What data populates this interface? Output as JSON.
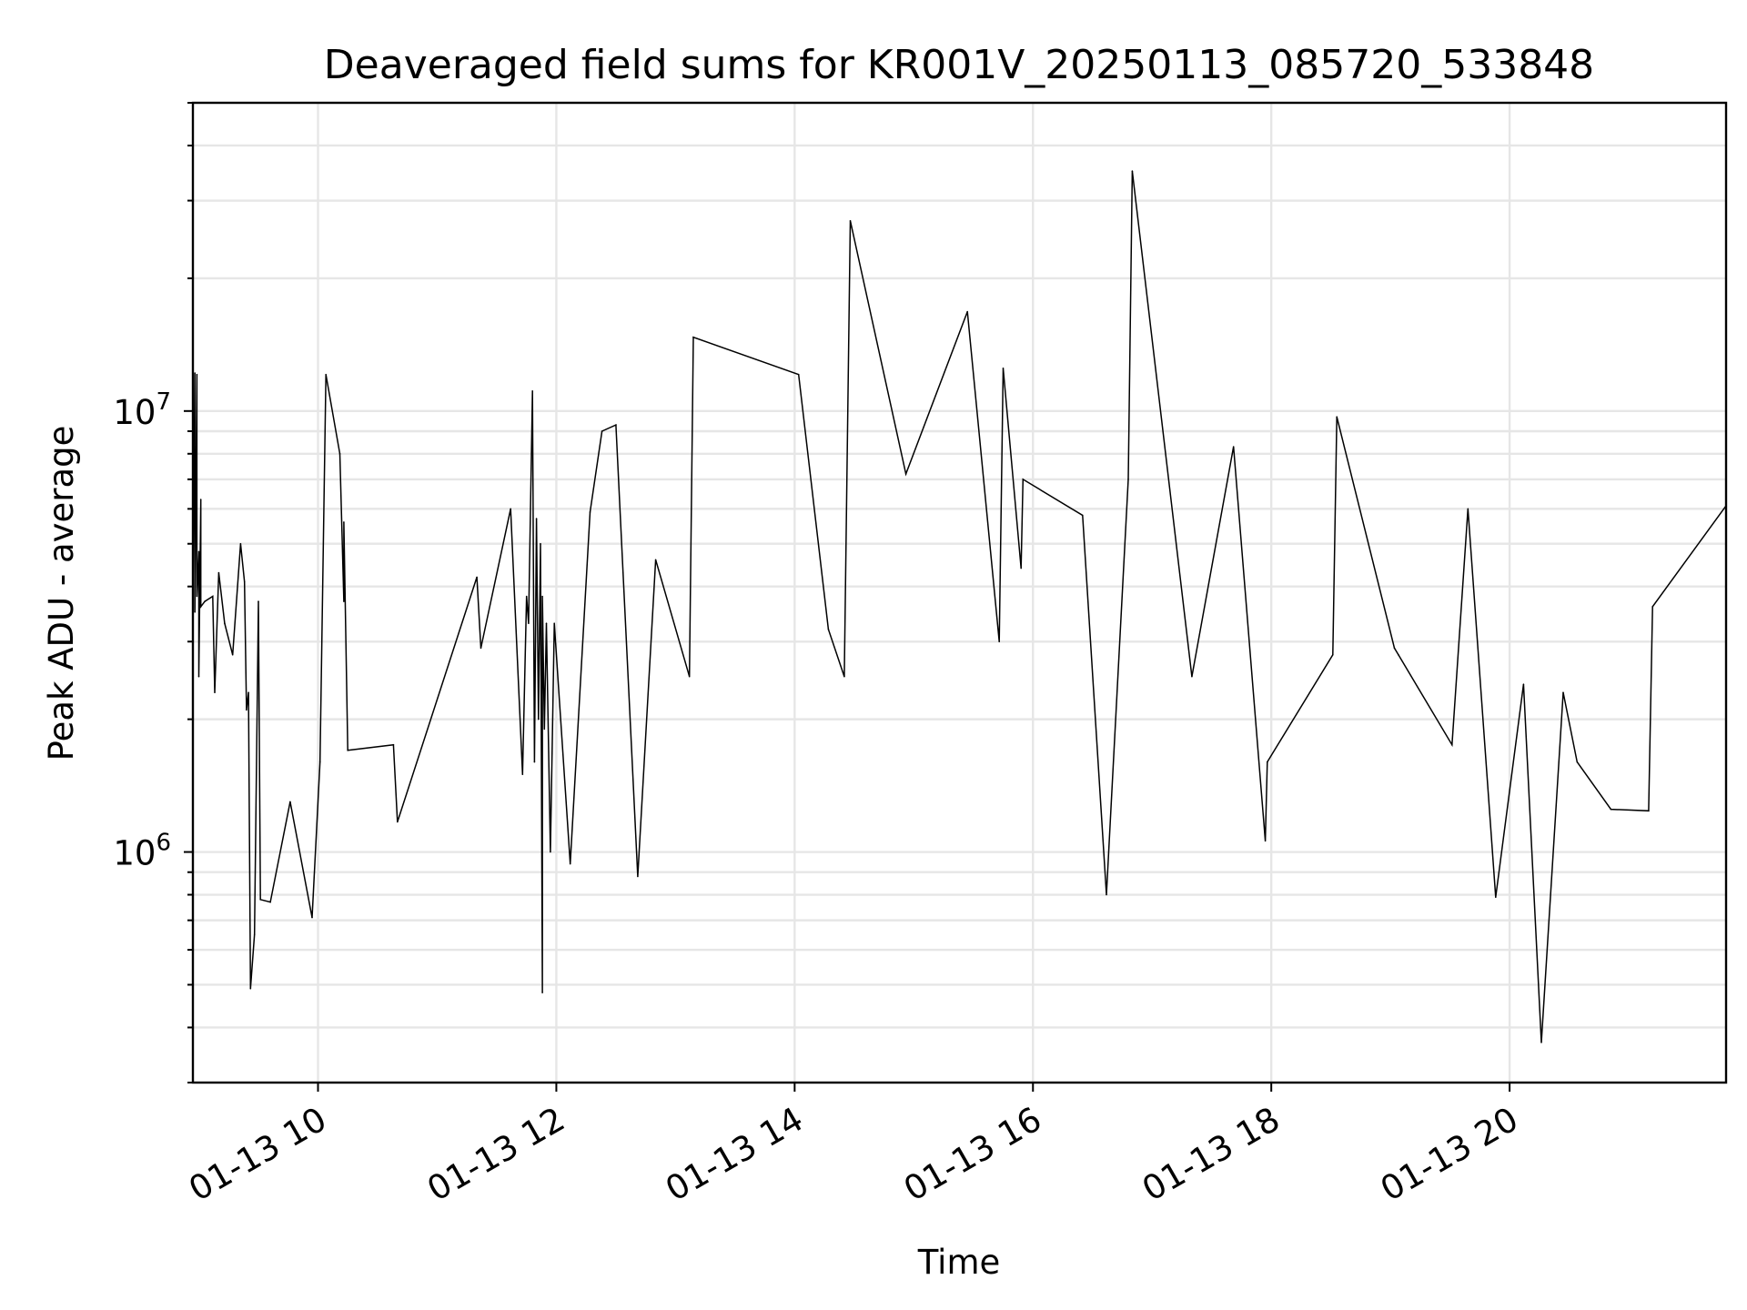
{
  "chart_data": {
    "type": "line",
    "title": "Deaveraged field sums for KR001V_20250113_085720_533848",
    "xlabel": "Time",
    "ylabel": "Peak ADU - average",
    "yscale": "log",
    "grid": true,
    "xlim": [
      "01-13 08:57",
      "01-13 21:49"
    ],
    "ylim": [
      300000,
      50000000
    ],
    "x_ticks": [
      "01-13 10",
      "01-13 12",
      "01-13 14",
      "01-13 16",
      "01-13 18",
      "01-13 20"
    ],
    "y_ticks": [
      {
        "value": 1000000,
        "base": "10",
        "exp": "6"
      },
      {
        "value": 10000000,
        "base": "10",
        "exp": "7"
      }
    ],
    "series": [
      {
        "color": "#000000",
        "points": [
          [
            "01-13 08:57",
            3700000
          ],
          [
            "01-13 08:58",
            12200000
          ],
          [
            "01-13 08:58",
            3500000
          ],
          [
            "01-13 08:59",
            12100000
          ],
          [
            "01-13 08:59",
            3800000
          ],
          [
            "01-13 09:00",
            4800000
          ],
          [
            "01-13 09:00",
            2500000
          ],
          [
            "01-13 09:01",
            6300000
          ],
          [
            "01-13 09:01",
            3600000
          ],
          [
            "01-13 09:03",
            3700000
          ],
          [
            "01-13 09:07",
            3800000
          ],
          [
            "01-13 09:08",
            2300000
          ],
          [
            "01-13 09:10",
            4300000
          ],
          [
            "01-13 09:13",
            3300000
          ],
          [
            "01-13 09:17",
            2800000
          ],
          [
            "01-13 09:21",
            5000000
          ],
          [
            "01-13 09:23",
            4100000
          ],
          [
            "01-13 09:24",
            2100000
          ],
          [
            "01-13 09:25",
            2300000
          ],
          [
            "01-13 09:26",
            490000
          ],
          [
            "01-13 09:28",
            650000
          ],
          [
            "01-13 09:30",
            3700000
          ],
          [
            "01-13 09:31",
            780000
          ],
          [
            "01-13 09:36",
            770000
          ],
          [
            "01-13 09:46",
            1300000
          ],
          [
            "01-13 09:57",
            710000
          ],
          [
            "01-13 10:01",
            1600000
          ],
          [
            "01-13 10:04",
            12100000
          ],
          [
            "01-13 10:11",
            8000000
          ],
          [
            "01-13 10:13",
            3700000
          ],
          [
            "01-13 10:13",
            5600000
          ],
          [
            "01-13 10:15",
            1700000
          ],
          [
            "01-13 10:38",
            1750000
          ],
          [
            "01-13 10:40",
            1170000
          ],
          [
            "01-13 11:20",
            4200000
          ],
          [
            "01-13 11:22",
            2900000
          ],
          [
            "01-13 11:37",
            6000000
          ],
          [
            "01-13 11:43",
            1500000
          ],
          [
            "01-13 11:45",
            3800000
          ],
          [
            "01-13 11:46",
            3300000
          ],
          [
            "01-13 11:48",
            11100000
          ],
          [
            "01-13 11:49",
            1600000
          ],
          [
            "01-13 11:50",
            5700000
          ],
          [
            "01-13 11:51",
            2000000
          ],
          [
            "01-13 11:52",
            5000000
          ],
          [
            "01-13 11:53",
            480000
          ],
          [
            "01-13 11:53",
            3800000
          ],
          [
            "01-13 11:54",
            1900000
          ],
          [
            "01-13 11:55",
            3300000
          ],
          [
            "01-13 11:57",
            1000000
          ],
          [
            "01-13 11:59",
            3300000
          ],
          [
            "01-13 12:07",
            940000
          ],
          [
            "01-13 12:17",
            5900000
          ],
          [
            "01-13 12:23",
            9000000
          ],
          [
            "01-13 12:30",
            9300000
          ],
          [
            "01-13 12:41",
            880000
          ],
          [
            "01-13 12:50",
            4600000
          ],
          [
            "01-13 13:07",
            2500000
          ],
          [
            "01-13 13:09",
            14700000
          ],
          [
            "01-13 14:02",
            12100000
          ],
          [
            "01-13 14:17",
            3200000
          ],
          [
            "01-13 14:25",
            2500000
          ],
          [
            "01-13 14:28",
            27000000
          ],
          [
            "01-13 14:56",
            7200000
          ],
          [
            "01-13 15:27",
            16800000
          ],
          [
            "01-13 15:43",
            3000000
          ],
          [
            "01-13 15:45",
            12500000
          ],
          [
            "01-13 15:54",
            4400000
          ],
          [
            "01-13 15:55",
            7000000
          ],
          [
            "01-13 16:25",
            5800000
          ],
          [
            "01-13 16:37",
            800000
          ],
          [
            "01-13 16:48",
            7000000
          ],
          [
            "01-13 16:50",
            35000000
          ],
          [
            "01-13 17:20",
            2500000
          ],
          [
            "01-13 17:41",
            8300000
          ],
          [
            "01-13 17:57",
            1060000
          ],
          [
            "01-13 17:58",
            1600000
          ],
          [
            "01-13 18:31",
            2800000
          ],
          [
            "01-13 18:33",
            9700000
          ],
          [
            "01-13 19:02",
            2900000
          ],
          [
            "01-13 19:04",
            2800000
          ],
          [
            "01-13 19:31",
            1750000
          ],
          [
            "01-13 19:39",
            6000000
          ],
          [
            "01-13 19:53",
            790000
          ],
          [
            "01-13 20:07",
            2400000
          ],
          [
            "01-13 20:16",
            370000
          ],
          [
            "01-13 20:27",
            2300000
          ],
          [
            "01-13 20:34",
            1600000
          ],
          [
            "01-13 20:51",
            1250000
          ],
          [
            "01-13 21:10",
            1240000
          ],
          [
            "01-13 21:12",
            3600000
          ],
          [
            "01-13 21:49",
            6100000
          ]
        ]
      }
    ]
  }
}
